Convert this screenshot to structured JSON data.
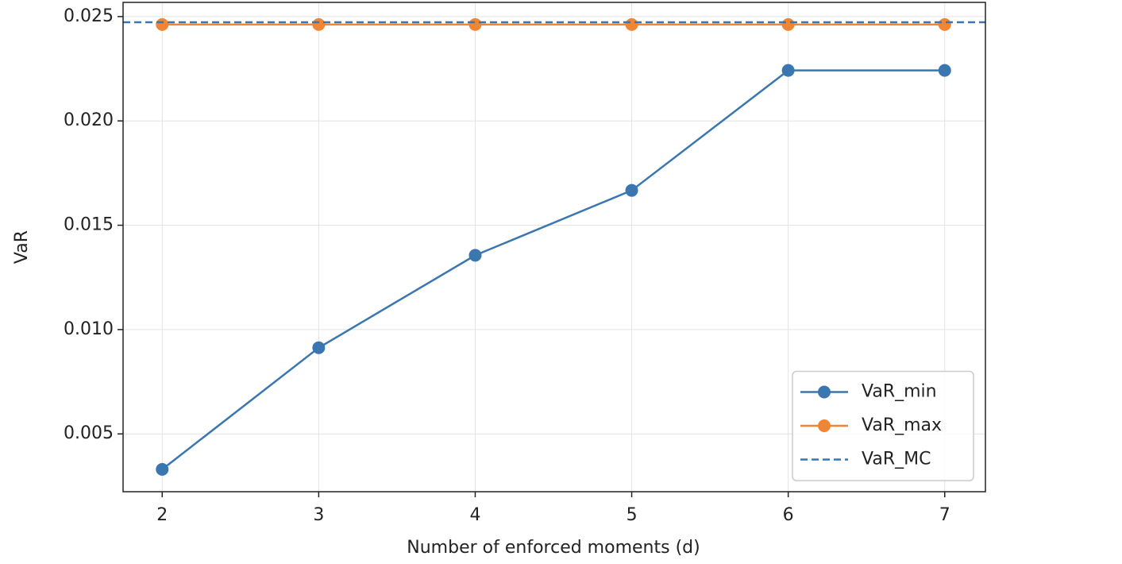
{
  "chart_data": {
    "type": "line",
    "x_label": "Number of enforced moments (d)",
    "y_label": "VaR",
    "x": [
      2,
      3,
      4,
      5,
      6,
      7
    ],
    "series": [
      {
        "name": "VaR_min",
        "color": "#3a76b0",
        "marker": "circle",
        "values": [
          0.0033,
          0.00913,
          0.01356,
          0.01667,
          0.02242,
          0.02242
        ]
      },
      {
        "name": "VaR_max",
        "color": "#ef8636",
        "marker": "circle",
        "values": [
          0.02462,
          0.02462,
          0.02462,
          0.02462,
          0.02462,
          0.02462
        ]
      }
    ],
    "hlines": [
      {
        "name": "VaR_MC",
        "color": "#3a76b0",
        "linestyle": "dashed",
        "value": 0.02473
      }
    ],
    "xlim": [
      1.75,
      7.26
    ],
    "ylim": [
      0.00223,
      0.02568
    ],
    "xticks": [
      2,
      3,
      4,
      5,
      6,
      7
    ],
    "yticks": [
      {
        "value": 0.005,
        "label": "0.005"
      },
      {
        "value": 0.01,
        "label": "0.010"
      },
      {
        "value": 0.015,
        "label": "0.015"
      },
      {
        "value": 0.02,
        "label": "0.020"
      },
      {
        "value": 0.025,
        "label": "0.025"
      }
    ],
    "grid": true,
    "legend_position": "lower right"
  }
}
